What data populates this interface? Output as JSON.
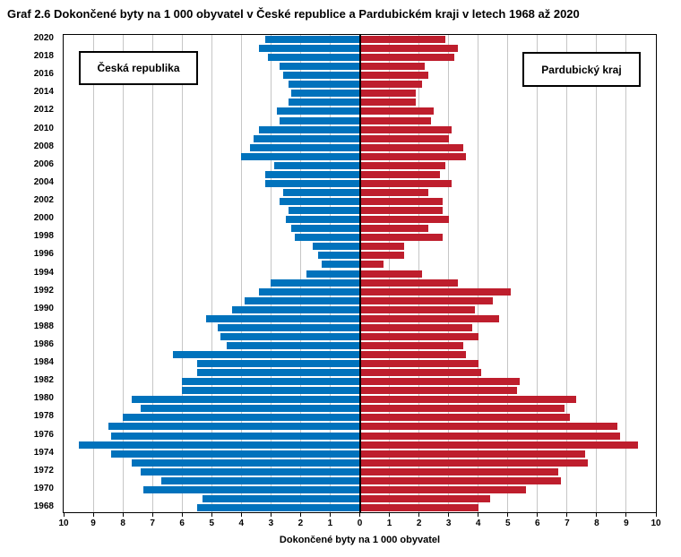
{
  "title": "Graf 2.6 Dokončené byty na 1 000 obyvatel v České republice a Pardubickém kraji v letech 1968 až 2020",
  "left_box_label": "Česká republika",
  "right_box_label": "Pardubický kraj",
  "xlabel": "Dokončené byty na 1 000 obyvatel",
  "colors": {
    "cz_blue": "#0072BC",
    "pk_red": "#BE1E2D",
    "grid": "#C6C6C6",
    "axis": "#000000"
  },
  "axis": {
    "tick_labels": [
      "10",
      "9",
      "8",
      "7",
      "6",
      "5",
      "4",
      "3",
      "2",
      "1",
      "0",
      "1",
      "2",
      "3",
      "4",
      "5",
      "6",
      "7",
      "8",
      "9",
      "10"
    ],
    "year_label_step": 2
  },
  "chart_data": {
    "type": "bar",
    "orientation": "horizontal-diverging",
    "title": "Graf 2.6 Dokončené byty na 1 000 obyvatel v České republice a Pardubickém kraji v letech 1968 až 2020",
    "xlabel": "Dokončené byty na 1 000 obyvatel",
    "xlim_each_side": [
      0,
      10
    ],
    "grid": true,
    "years": [
      2020,
      2019,
      2018,
      2017,
      2016,
      2015,
      2014,
      2013,
      2012,
      2011,
      2010,
      2009,
      2008,
      2007,
      2006,
      2005,
      2004,
      2003,
      2002,
      2001,
      2000,
      1999,
      1998,
      1997,
      1996,
      1995,
      1994,
      1993,
      1992,
      1991,
      1990,
      1989,
      1988,
      1987,
      1986,
      1985,
      1984,
      1983,
      1982,
      1981,
      1980,
      1979,
      1978,
      1977,
      1976,
      1975,
      1974,
      1973,
      1972,
      1971,
      1970,
      1969,
      1968
    ],
    "series": [
      {
        "name": "Česká republika",
        "side": "left",
        "color": "#0072BC",
        "values": [
          3.2,
          3.4,
          3.1,
          2.7,
          2.6,
          2.4,
          2.3,
          2.4,
          2.8,
          2.7,
          3.4,
          3.6,
          3.7,
          4.0,
          2.9,
          3.2,
          3.2,
          2.6,
          2.7,
          2.4,
          2.5,
          2.3,
          2.2,
          1.6,
          1.4,
          1.3,
          1.8,
          3.0,
          3.4,
          3.9,
          4.3,
          5.2,
          4.8,
          4.7,
          4.5,
          6.3,
          5.5,
          5.5,
          6.0,
          6.0,
          7.7,
          7.4,
          8.0,
          8.5,
          8.4,
          9.5,
          8.4,
          7.7,
          7.4,
          6.7,
          7.3,
          5.3,
          5.5
        ]
      },
      {
        "name": "Pardubický kraj",
        "side": "right",
        "color": "#BE1E2D",
        "values": [
          2.9,
          3.3,
          3.2,
          2.2,
          2.3,
          2.1,
          1.9,
          1.9,
          2.5,
          2.4,
          3.1,
          3.0,
          3.5,
          3.6,
          2.9,
          2.7,
          3.1,
          2.3,
          2.8,
          2.8,
          3.0,
          2.3,
          2.8,
          1.5,
          1.5,
          0.8,
          2.1,
          3.3,
          5.1,
          4.5,
          3.9,
          4.7,
          3.8,
          4.0,
          3.5,
          3.6,
          4.0,
          4.1,
          5.4,
          5.3,
          7.3,
          6.9,
          7.1,
          8.7,
          8.8,
          9.4,
          7.6,
          7.7,
          6.7,
          6.8,
          5.6,
          4.4,
          4.0
        ]
      }
    ]
  }
}
